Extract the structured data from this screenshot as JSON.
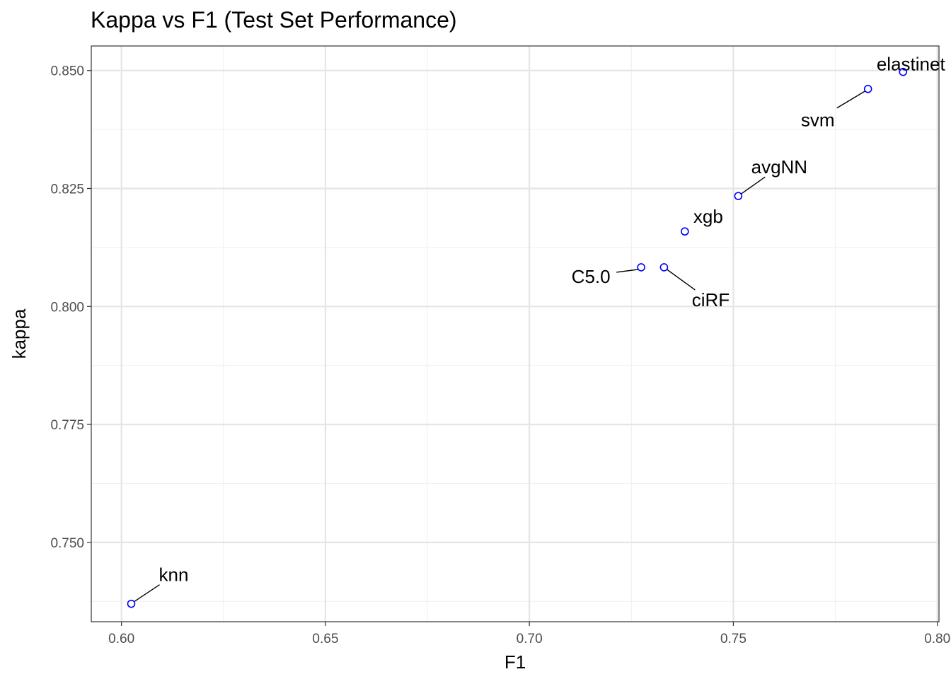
{
  "chart_data": {
    "type": "scatter",
    "title": "Kappa vs F1 (Test Set Performance)",
    "xlabel": "F1",
    "ylabel": "kappa",
    "xlim": [
      0.5926,
      0.8004
    ],
    "ylim": [
      0.7332,
      0.8552
    ],
    "x_ticks": [
      0.6,
      0.65,
      0.7,
      0.75,
      0.8
    ],
    "x_tick_labels": [
      "0.60",
      "0.65",
      "0.70",
      "0.75",
      "0.80"
    ],
    "y_ticks": [
      0.75,
      0.775,
      0.8,
      0.825,
      0.85
    ],
    "y_tick_labels": [
      "0.750",
      "0.775",
      "0.800",
      "0.825",
      "0.850"
    ],
    "grid": true,
    "point_color": "#0000ff",
    "points": [
      {
        "label": "knn",
        "x": 0.6024,
        "y": 0.737
      },
      {
        "label": "C5.0",
        "x": 0.7274,
        "y": 0.8083
      },
      {
        "label": "ciRF",
        "x": 0.733,
        "y": 0.8083
      },
      {
        "label": "xgb",
        "x": 0.7381,
        "y": 0.8159
      },
      {
        "label": "avgNN",
        "x": 0.7512,
        "y": 0.8234
      },
      {
        "label": "svm",
        "x": 0.783,
        "y": 0.8461
      },
      {
        "label": "elastinet",
        "x": 0.7916,
        "y": 0.8497
      }
    ]
  }
}
